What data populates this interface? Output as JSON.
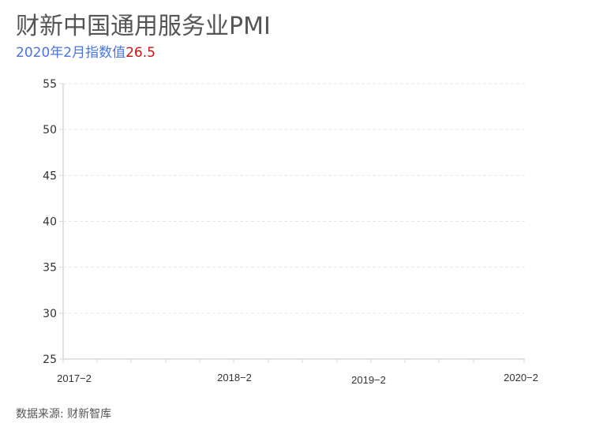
{
  "header": {
    "title": "财新中国通用服务业PMI",
    "subtitle_label": "2020年2月指数值",
    "subtitle_value": "26.5",
    "label_color": "#4a74e0",
    "value_color": "#cc1111"
  },
  "footer": {
    "source": "数据来源: 财新智库"
  },
  "chart_data": {
    "type": "line",
    "title": "财新中国通用服务业PMI",
    "subtitle": "2020年2月指数值26.5",
    "xlabel": "",
    "ylabel": "",
    "ylim": [
      25,
      55
    ],
    "yticks": [
      "25",
      "30",
      "35",
      "40",
      "45",
      "50",
      "55"
    ],
    "xtick_labels": [
      "2017-2",
      "2018-2",
      "2019-2",
      "2020-2"
    ],
    "grid": true,
    "series": [
      {
        "name": "财新中国通用服务业PMI",
        "values": []
      }
    ],
    "annotations": [
      "2020年2月指数值26.5"
    ],
    "source": "数据来源: 财新智库"
  }
}
